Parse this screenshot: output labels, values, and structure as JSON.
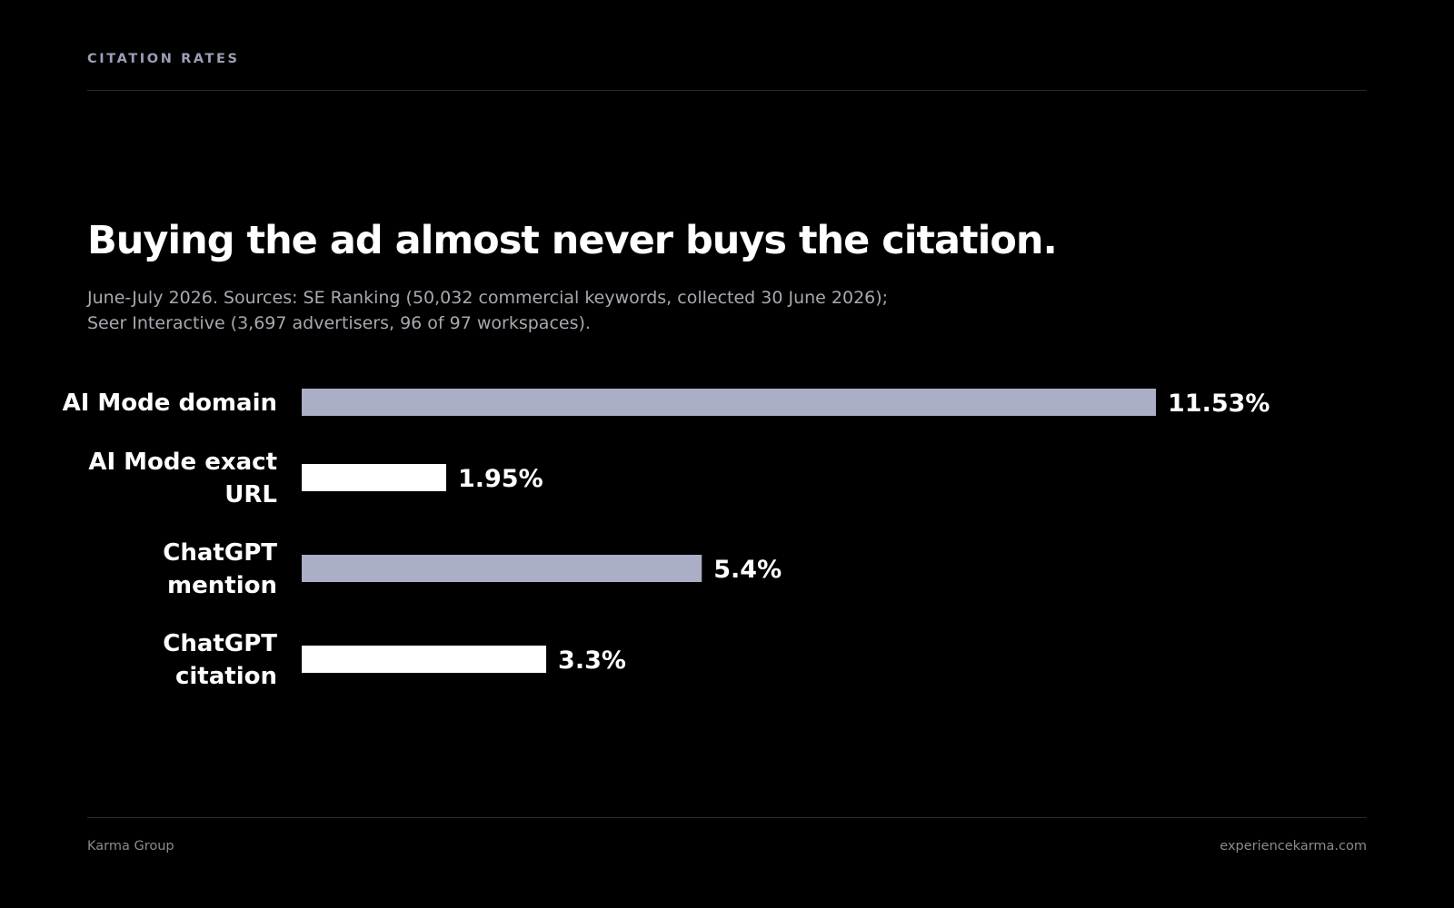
{
  "header": {
    "eyebrow": "CITATION RATES"
  },
  "headline": "Buying the ad almost never buys the citation.",
  "subtitle": {
    "line1": "June-July 2026. Sources: SE Ranking (50,032 commercial keywords, collected 30 June 2026);",
    "line2": "Seer Interactive (3,697 advertisers, 96 of 97 workspaces)."
  },
  "chart_data": {
    "type": "bar",
    "orientation": "horizontal",
    "categories": [
      "AI Mode domain",
      "AI Mode exact URL",
      "ChatGPT mention",
      "ChatGPT citation"
    ],
    "category_lines": [
      [
        "AI Mode domain"
      ],
      [
        "AI Mode exact",
        "URL"
      ],
      [
        "ChatGPT",
        "mention"
      ],
      [
        "ChatGPT",
        "citation"
      ]
    ],
    "values": [
      11.53,
      1.95,
      5.4,
      3.3
    ],
    "value_labels": [
      "11.53%",
      "1.95%",
      "5.4%",
      "3.3%"
    ],
    "unit": "%",
    "xlim": [
      0,
      11.53
    ],
    "grid": false,
    "bar_colors": [
      "#aaaec6",
      "#ffffff",
      "#aaaec6",
      "#ffffff"
    ],
    "label_color": "#ffffff"
  },
  "footer": {
    "left": "Karma Group",
    "right": "experiencekarma.com"
  },
  "colors": {
    "background": "#000000",
    "accent_bar": "#aaaec6",
    "plain_bar": "#ffffff",
    "muted_text": "#a8a8b0"
  }
}
